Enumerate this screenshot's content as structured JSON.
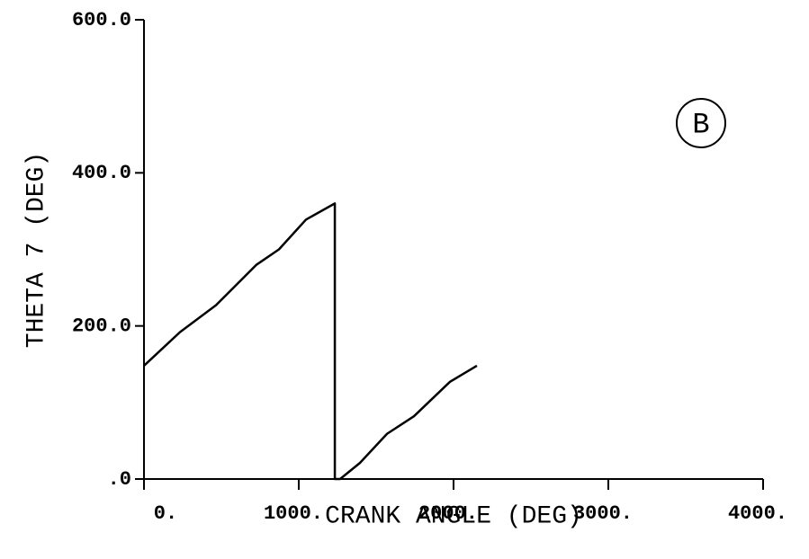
{
  "chart_data": {
    "type": "line",
    "xlabel": "CRANK ANGLE (DEG)",
    "ylabel": "THETA 7 (DEG)",
    "annotation": "B",
    "x": [
      0,
      233,
      465,
      727,
      872,
      1047,
      1233,
      1233,
      1267,
      1395,
      1570,
      1744,
      1977,
      2151
    ],
    "series": [
      {
        "name": "THETA 7",
        "color": "#000000",
        "values": [
          148,
          192,
          227,
          280,
          300,
          339,
          360,
          0,
          0,
          21,
          59,
          82,
          127,
          148
        ]
      }
    ],
    "xlim": [
      0,
      4000
    ],
    "xticks": [
      {
        "value": 0,
        "label": "0."
      },
      {
        "value": 1000,
        "label": "1000."
      },
      {
        "value": 2000,
        "label": "2000."
      },
      {
        "value": 3000,
        "label": "3000."
      },
      {
        "value": 4000,
        "label": "4000."
      }
    ],
    "ylim": [
      0,
      600
    ],
    "yticks": [
      {
        "value": 0,
        "label": ".0"
      },
      {
        "value": 200,
        "label": "200.0"
      },
      {
        "value": 400,
        "label": "400.0"
      },
      {
        "value": 600,
        "label": "600.0"
      }
    ],
    "grid": false
  }
}
